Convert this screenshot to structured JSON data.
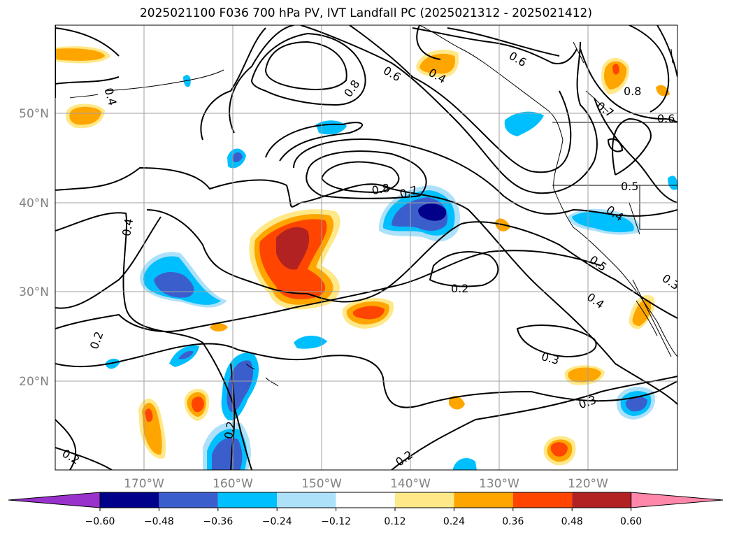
{
  "title": "2025021100 F036 700 hPa PV, IVT Landfall PC (2025021312 - 2025021412)",
  "map": {
    "lat_labels": [
      "50°N",
      "40°N",
      "30°N",
      "20°N"
    ],
    "lon_labels": [
      "170°W",
      "160°W",
      "150°W",
      "140°W",
      "130°W",
      "120°W"
    ],
    "contour_labels": [
      "0.8",
      "0.6",
      "0.4",
      "0.6",
      "0.8",
      "0.7",
      "0.6",
      "0.4",
      "0.8",
      "0.7",
      "0.5",
      "0.4",
      "0.5",
      "0.3",
      "0.4",
      "0.2",
      "0.2",
      "0.3",
      "0.3",
      "0.2",
      "0.2",
      "0.2",
      "0.4"
    ]
  },
  "colorbar": {
    "colors": [
      "#9932cc",
      "#00008b",
      "#3a5fcd",
      "#00bfff",
      "#ade1fa",
      "#ffffff",
      "#ffe887",
      "#ffa500",
      "#ff4500",
      "#b22222",
      "#ff88aa"
    ],
    "tick_labels": [
      "−0.60",
      "−0.48",
      "−0.36",
      "−0.24",
      "−0.12",
      "0.12",
      "0.24",
      "0.36",
      "0.48",
      "0.60"
    ]
  }
}
